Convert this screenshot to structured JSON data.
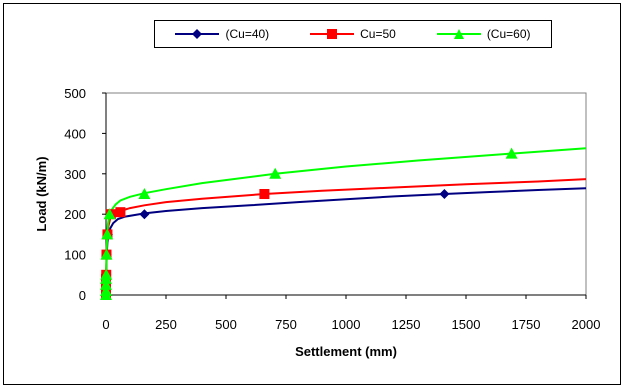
{
  "chart_data": {
    "type": "line",
    "title": "",
    "xlabel": "Settlement (mm)",
    "ylabel": "Load (kN/m)",
    "xlim": [
      0,
      2000
    ],
    "ylim": [
      0,
      500
    ],
    "xticks": [
      "0",
      "250",
      "500",
      "750",
      "1000",
      "1250",
      "1500",
      "1750",
      "2000"
    ],
    "yticks": [
      "0",
      "100",
      "200",
      "300",
      "400",
      "500"
    ],
    "grid": false,
    "legend_position": "top",
    "series": [
      {
        "name": "(Cu=40)",
        "color": "#000080",
        "marker": "diamond",
        "x": [
          0,
          0,
          0,
          0,
          1,
          3,
          8,
          20,
          160,
          1410
        ],
        "y": [
          0,
          10,
          25,
          40,
          50,
          100,
          150,
          200,
          200,
          250
        ],
        "curve_x": [
          0,
          1,
          3,
          6,
          10,
          18,
          30,
          50,
          80,
          120,
          160,
          250,
          400,
          600,
          800,
          1000,
          1200,
          1410,
          1600,
          1800,
          2000
        ],
        "curve_y": [
          0,
          50,
          100,
          130,
          150,
          165,
          178,
          188,
          194,
          198,
          202,
          208,
          215,
          222,
          230,
          237,
          244,
          250,
          255,
          260,
          264
        ]
      },
      {
        "name": "Cu=50",
        "color": "#ff0000",
        "marker": "square",
        "x": [
          0,
          0,
          0,
          0,
          1,
          2,
          6,
          20,
          60,
          660
        ],
        "y": [
          0,
          10,
          25,
          40,
          50,
          100,
          150,
          200,
          205,
          250
        ],
        "curve_x": [
          0,
          1,
          2,
          4,
          6,
          10,
          20,
          35,
          60,
          100,
          160,
          250,
          400,
          660,
          900,
          1200,
          1500,
          1800,
          2000
        ],
        "curve_y": [
          0,
          50,
          100,
          130,
          150,
          170,
          195,
          203,
          208,
          215,
          222,
          230,
          238,
          250,
          258,
          266,
          274,
          281,
          287
        ]
      },
      {
        "name": "(Cu=60)",
        "color": "#00ff00",
        "marker": "triangle",
        "x": [
          0,
          0,
          0,
          0,
          1,
          2,
          5,
          15,
          160,
          705,
          1690
        ],
        "y": [
          0,
          10,
          25,
          40,
          50,
          100,
          150,
          200,
          250,
          300,
          350
        ],
        "curve_x": [
          0,
          1,
          2,
          4,
          5,
          8,
          15,
          25,
          40,
          60,
          100,
          160,
          250,
          400,
          705,
          1000,
          1300,
          1690,
          2000
        ],
        "curve_y": [
          0,
          50,
          100,
          135,
          150,
          175,
          200,
          212,
          224,
          234,
          243,
          252,
          262,
          277,
          300,
          318,
          333,
          350,
          363
        ]
      }
    ]
  }
}
